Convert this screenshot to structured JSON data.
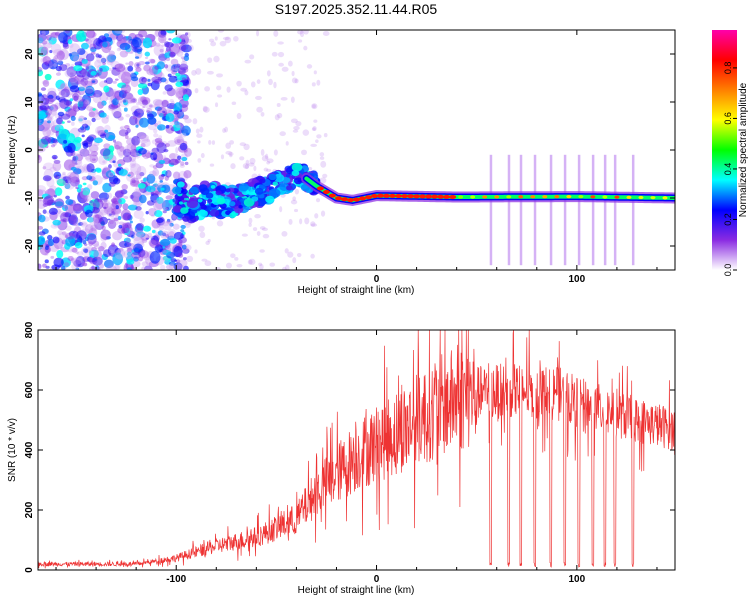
{
  "title": "S197.2025.352.11.44.R05",
  "chart_data": [
    {
      "type": "heatmap",
      "name": "spectrogram",
      "xlabel": "Height of straight line (km)",
      "ylabel": "Frequency (Hz)",
      "xlim": [
        -169,
        149
      ],
      "ylim": [
        -25,
        25
      ],
      "xticks": [
        -100,
        0,
        100
      ],
      "yticks": [
        -20,
        -10,
        0,
        10,
        20
      ],
      "colorbar": {
        "label": "Normalized spectral amplitude",
        "range": [
          0,
          0.95
        ],
        "ticks": [
          "0.0",
          "0.2",
          "0.4",
          "0.6",
          "0.8"
        ],
        "colors": [
          "#ffffff",
          "#8a2be2",
          "#0000ff",
          "#00ffff",
          "#00ff00",
          "#ffff00",
          "#ff8000",
          "#ff0000",
          "#ff00aa"
        ]
      },
      "signal_track": [
        {
          "x": -96,
          "f": -12
        },
        {
          "x": -85,
          "f": -10
        },
        {
          "x": -72,
          "f": -11
        },
        {
          "x": -60,
          "f": -9
        },
        {
          "x": -48,
          "f": -7
        },
        {
          "x": -38,
          "f": -5
        },
        {
          "x": -30,
          "f": -7.5
        },
        {
          "x": -20,
          "f": -10
        },
        {
          "x": -12,
          "f": -10.5
        },
        {
          "x": 0,
          "f": -9.5
        },
        {
          "x": 40,
          "f": -9.8
        },
        {
          "x": 100,
          "f": -9.7
        },
        {
          "x": 149,
          "f": -10
        }
      ]
    },
    {
      "type": "line",
      "name": "snr",
      "xlabel": "Height of straight line (km)",
      "ylabel": "SNR (10 * v/v)",
      "xlim": [
        -169,
        149
      ],
      "ylim": [
        0,
        800
      ],
      "xticks": [
        -100,
        0,
        100
      ],
      "yticks": [
        0,
        200,
        400,
        600,
        800
      ],
      "color": "#ee3333",
      "trend": [
        {
          "x": -169,
          "y": 20
        },
        {
          "x": -120,
          "y": 20
        },
        {
          "x": -100,
          "y": 40
        },
        {
          "x": -80,
          "y": 80
        },
        {
          "x": -60,
          "y": 110
        },
        {
          "x": -40,
          "y": 170
        },
        {
          "x": -30,
          "y": 260
        },
        {
          "x": -20,
          "y": 320
        },
        {
          "x": -10,
          "y": 380
        },
        {
          "x": 0,
          "y": 420
        },
        {
          "x": 10,
          "y": 460
        },
        {
          "x": 20,
          "y": 500
        },
        {
          "x": 30,
          "y": 540
        },
        {
          "x": 40,
          "y": 570
        },
        {
          "x": 50,
          "y": 590
        },
        {
          "x": 60,
          "y": 595
        },
        {
          "x": 70,
          "y": 600
        },
        {
          "x": 80,
          "y": 595
        },
        {
          "x": 90,
          "y": 590
        },
        {
          "x": 100,
          "y": 560
        },
        {
          "x": 110,
          "y": 540
        },
        {
          "x": 120,
          "y": 520
        },
        {
          "x": 130,
          "y": 500
        },
        {
          "x": 149,
          "y": 470
        }
      ],
      "dropouts": [
        57,
        66,
        72,
        79,
        87,
        94,
        101,
        108,
        114,
        119,
        128
      ]
    }
  ]
}
